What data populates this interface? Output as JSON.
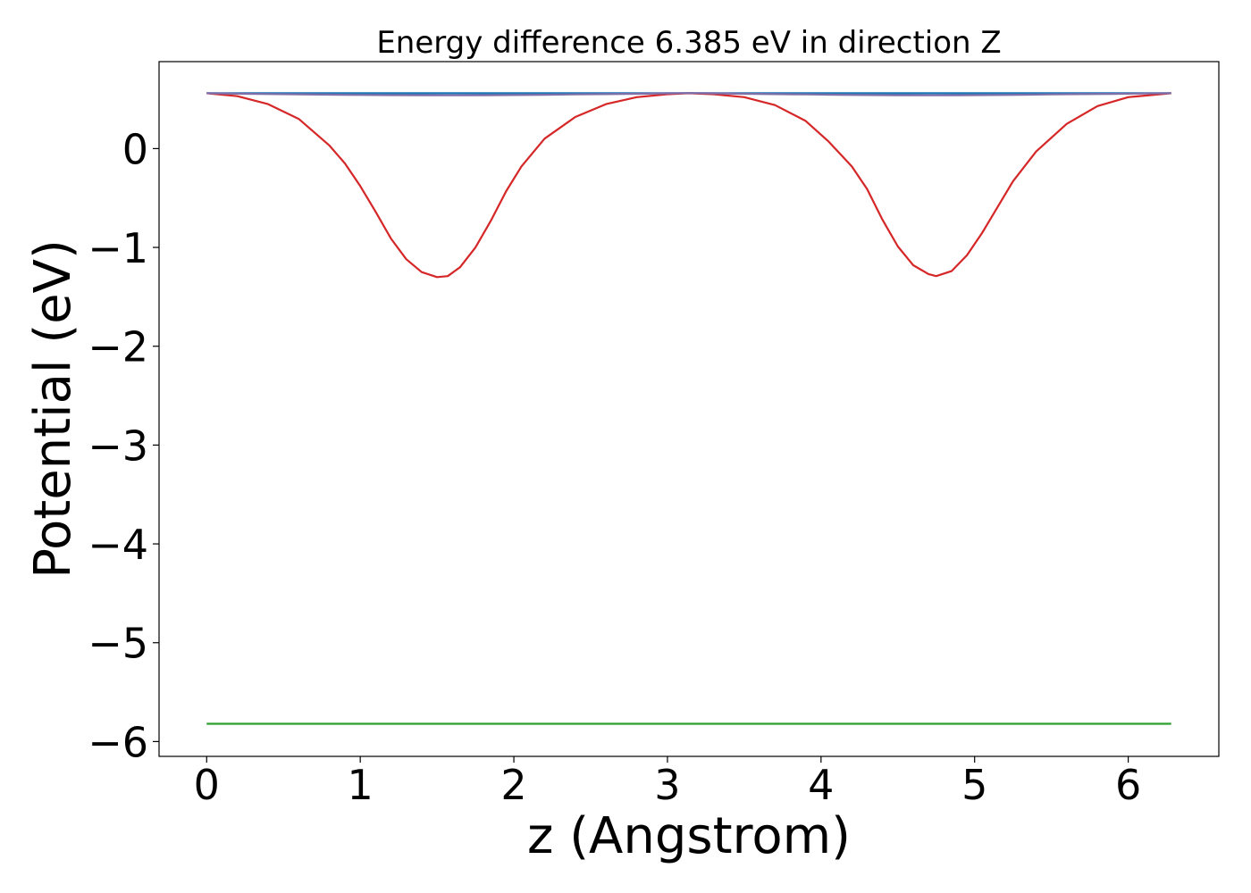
{
  "chart_data": {
    "type": "line",
    "title": "Energy difference 6.385 eV in direction Z",
    "xlabel": "z (Angstrom)",
    "ylabel": "Potential (eV)",
    "xlim": [
      -0.31,
      6.59
    ],
    "ylim": [
      -6.15,
      0.88
    ],
    "xticks": [
      0,
      1,
      2,
      3,
      4,
      5,
      6
    ],
    "xtick_labels": [
      "0",
      "1",
      "2",
      "3",
      "4",
      "5",
      "6"
    ],
    "yticks": [
      0,
      -1,
      -2,
      -3,
      -4,
      -5,
      -6
    ],
    "ytick_labels": [
      "0",
      "−1",
      "−2",
      "−3",
      "−4",
      "−5",
      "−6"
    ],
    "grid": false,
    "series": [
      {
        "color": "#1f77b4",
        "x": [
          0,
          6.28
        ],
        "y": [
          0.56,
          0.56
        ]
      },
      {
        "color": "#2ca02c",
        "x": [
          0,
          6.28
        ],
        "y": [
          -5.82,
          -5.82
        ]
      },
      {
        "color": "#d62728",
        "x": [
          0,
          0.2,
          0.4,
          0.6,
          0.8,
          0.9,
          1.0,
          1.1,
          1.2,
          1.3,
          1.4,
          1.5,
          1.57,
          1.65,
          1.75,
          1.85,
          1.95,
          2.05,
          2.2,
          2.4,
          2.6,
          2.8,
          3.0,
          3.14,
          3.3,
          3.5,
          3.7,
          3.9,
          4.05,
          4.2,
          4.3,
          4.4,
          4.5,
          4.6,
          4.7,
          4.75,
          4.85,
          4.95,
          5.05,
          5.15,
          5.25,
          5.4,
          5.6,
          5.8,
          6.0,
          6.28
        ],
        "y": [
          0.56,
          0.53,
          0.45,
          0.3,
          0.03,
          -0.15,
          -0.38,
          -0.64,
          -0.91,
          -1.12,
          -1.25,
          -1.3,
          -1.29,
          -1.2,
          -1.0,
          -0.73,
          -0.43,
          -0.18,
          0.1,
          0.32,
          0.45,
          0.52,
          0.55,
          0.56,
          0.55,
          0.52,
          0.44,
          0.28,
          0.07,
          -0.18,
          -0.41,
          -0.72,
          -0.99,
          -1.18,
          -1.27,
          -1.29,
          -1.24,
          -1.08,
          -0.85,
          -0.59,
          -0.33,
          -0.03,
          0.25,
          0.43,
          0.52,
          0.56
        ]
      },
      {
        "color": "#7f6fa8",
        "x": [
          0,
          0.2,
          0.4,
          0.6,
          0.8,
          1.0,
          1.2,
          1.4,
          1.57,
          1.8,
          2.0,
          2.2,
          2.4,
          2.6,
          2.8,
          3.0,
          3.14,
          3.3,
          3.5,
          3.7,
          3.9,
          4.1,
          4.3,
          4.5,
          4.71,
          4.9,
          5.1,
          5.3,
          5.5,
          5.7,
          5.9,
          6.1,
          6.28
        ],
        "y": [
          0.56,
          0.556,
          0.552,
          0.549,
          0.546,
          0.543,
          0.541,
          0.54,
          0.539,
          0.54,
          0.542,
          0.545,
          0.548,
          0.551,
          0.555,
          0.559,
          0.562,
          0.559,
          0.555,
          0.551,
          0.548,
          0.545,
          0.542,
          0.54,
          0.539,
          0.54,
          0.542,
          0.545,
          0.548,
          0.551,
          0.554,
          0.557,
          0.56
        ]
      }
    ]
  }
}
